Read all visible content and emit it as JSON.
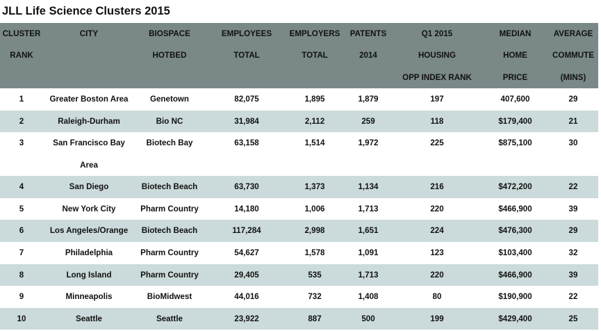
{
  "title": "JLL Life Science Clusters 2015",
  "header": [
    [
      "CLUSTER",
      "RANK",
      ""
    ],
    [
      "CITY",
      "",
      ""
    ],
    [
      "BIOSPACE",
      "HOTBED",
      ""
    ],
    [
      "EMPLOYEES",
      "TOTAL",
      ""
    ],
    [
      "EMPLOYERS",
      "TOTAL",
      ""
    ],
    [
      "PATENTS",
      "2014",
      ""
    ],
    [
      "Q1 2015",
      "HOUSING",
      "OPP INDEX RANK"
    ],
    [
      "MEDIAN",
      "HOME",
      "PRICE"
    ],
    [
      "AVERAGE",
      "COMMUTE",
      "(MINS)"
    ]
  ],
  "rows": [
    [
      "1",
      "Greater Boston Area",
      "Genetown",
      "82,075",
      "1,895",
      "1,879",
      "197",
      "407,600",
      "29"
    ],
    [
      "2",
      "Raleigh-Durham",
      "Bio NC",
      "31,984",
      "2,112",
      "259",
      "118",
      "$179,400",
      "21"
    ],
    [
      "3",
      "San Francisco Bay",
      "Biotech Bay",
      "63,158",
      "1,514",
      "1,972",
      "225",
      "$875,100",
      "30"
    ],
    [
      "4",
      "San Diego",
      "Biotech Beach",
      "63,730",
      "1,373",
      "1,134",
      "216",
      "$472,200",
      "22"
    ],
    [
      "5",
      "New York City",
      "Pharm Country",
      "14,180",
      "1,006",
      "1,713",
      "220",
      "$466,900",
      "39"
    ],
    [
      "6",
      "Los Angeles/Orange",
      "Biotech Beach",
      "117,284",
      "2,998",
      "1,651",
      "224",
      "$476,300",
      "29"
    ],
    [
      "7",
      "Philadelphia",
      "Pharm Country",
      "54,627",
      "1,578",
      "1,091",
      "123",
      "$103,400",
      "32"
    ],
    [
      "8",
      "Long Island",
      "Pharm Country",
      "29,405",
      "535",
      "1,713",
      "220",
      "$466,900",
      "39"
    ],
    [
      "9",
      "Minneapolis",
      "BioMidwest",
      "44,016",
      "732",
      "1,408",
      "80",
      "$190,900",
      "22"
    ],
    [
      "10",
      "Seattle",
      "Seattle",
      "23,922",
      "887",
      "500",
      "199",
      "$429,400",
      "25"
    ]
  ],
  "row3_city_line2": "Area",
  "colors": {
    "header_bg": "#7a8888",
    "alt_row_bg": "#cbdada",
    "row_bg": "#ffffff"
  }
}
